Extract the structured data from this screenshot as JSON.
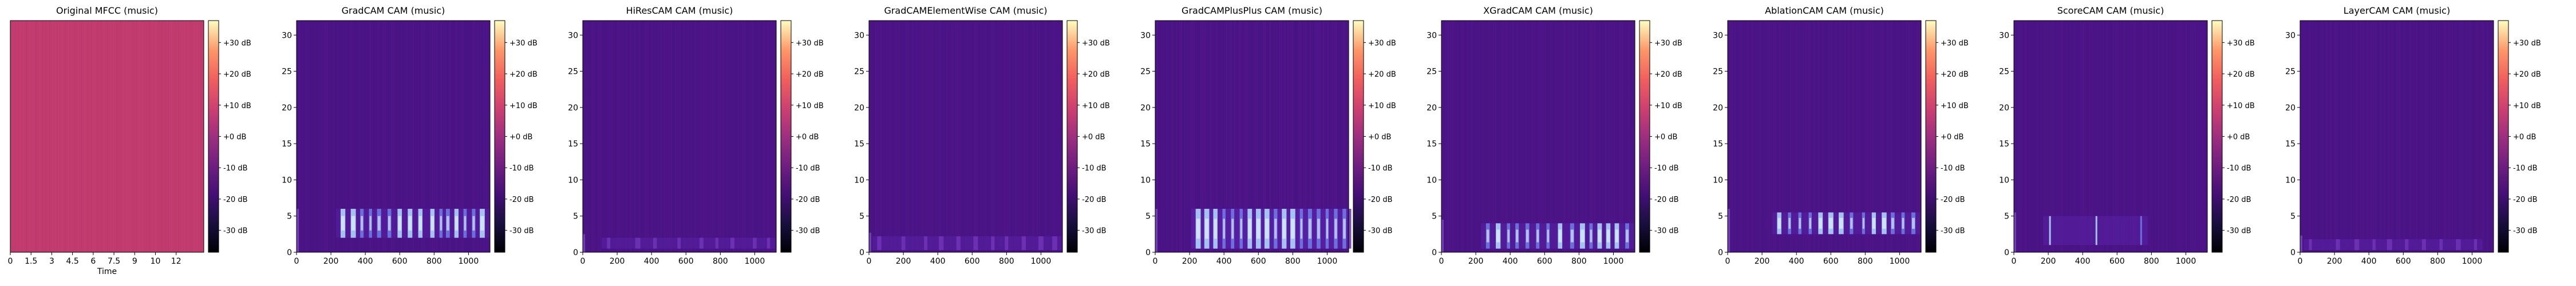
{
  "figure": {
    "colormap": "magma",
    "colorbar_ticks": [
      "+30 dB",
      "+20 dB",
      "+10 dB",
      "+0 dB",
      "-10 dB",
      "-20 dB",
      "-30 dB"
    ]
  },
  "chart_data": [
    {
      "type": "heatmap",
      "title": "Original MFCC (music)",
      "xlabel": "Time",
      "ylabel": "",
      "x_ticks": [
        "0",
        "1.5",
        "3",
        "4.5",
        "6",
        "7.5",
        "9",
        "10",
        "12"
      ],
      "y_ticks": [],
      "xlim": [
        0,
        14
      ],
      "pattern": "uniform",
      "base_color": "#c13b6e"
    },
    {
      "type": "heatmap",
      "title": "GradCAM CAM (music)",
      "xlabel": "",
      "ylabel": "",
      "x_ticks": [
        "0",
        "200",
        "400",
        "600",
        "800",
        "1000"
      ],
      "y_ticks": [
        "0",
        "5",
        "10",
        "15",
        "20",
        "25",
        "30"
      ],
      "xlim": [
        0,
        1125
      ],
      "ylim": [
        0,
        32
      ],
      "pattern": "band-low",
      "band": [
        2,
        6
      ],
      "hotspots_x": [
        270,
        330,
        380,
        430,
        480,
        540,
        600,
        660,
        720,
        790,
        840,
        880,
        930,
        980,
        1030,
        1080
      ]
    },
    {
      "type": "heatmap",
      "title": "HiResCAM CAM (music)",
      "xlabel": "",
      "ylabel": "",
      "x_ticks": [
        "0",
        "200",
        "400",
        "600",
        "800",
        "1000"
      ],
      "y_ticks": [
        "0",
        "5",
        "10",
        "15",
        "20",
        "25",
        "30"
      ],
      "xlim": [
        0,
        1125
      ],
      "ylim": [
        0,
        32
      ],
      "pattern": "faint-bottom",
      "band": [
        0.5,
        2
      ],
      "hotspots_x": [
        150,
        320,
        420,
        560,
        690,
        780,
        870,
        1000,
        1080
      ]
    },
    {
      "type": "heatmap",
      "title": "GradCAMElementWise CAM (music)",
      "xlabel": "",
      "ylabel": "",
      "x_ticks": [
        "0",
        "200",
        "400",
        "600",
        "800",
        "1000"
      ],
      "y_ticks": [
        "0",
        "5",
        "10",
        "15",
        "20",
        "25",
        "30"
      ],
      "xlim": [
        0,
        1125
      ],
      "ylim": [
        0,
        32
      ],
      "pattern": "faint-bottom",
      "band": [
        0.3,
        2.2
      ],
      "hotspots_x": [
        60,
        200,
        330,
        420,
        520,
        620,
        720,
        800,
        900,
        1000,
        1080
      ]
    },
    {
      "type": "heatmap",
      "title": "GradCAMPlusPlus CAM (music)",
      "xlabel": "",
      "ylabel": "",
      "x_ticks": [
        "0",
        "200",
        "400",
        "600",
        "800",
        "1000"
      ],
      "y_ticks": [
        "0",
        "5",
        "10",
        "15",
        "20",
        "25",
        "30"
      ],
      "xlim": [
        0,
        1125
      ],
      "ylim": [
        0,
        32
      ],
      "pattern": "band-wide",
      "band": [
        0.5,
        6
      ],
      "hotspots_x": [
        250,
        300,
        350,
        400,
        450,
        500,
        550,
        600,
        650,
        700,
        750,
        800,
        850,
        900,
        950,
        1000,
        1050,
        1100
      ]
    },
    {
      "type": "heatmap",
      "title": "XGradCAM CAM (music)",
      "xlabel": "",
      "ylabel": "",
      "x_ticks": [
        "0",
        "200",
        "400",
        "600",
        "800",
        "1000"
      ],
      "y_ticks": [
        "0",
        "5",
        "10",
        "15",
        "20",
        "25",
        "30"
      ],
      "xlim": [
        0,
        1125
      ],
      "ylim": [
        0,
        32
      ],
      "pattern": "band-low",
      "band": [
        0.5,
        4
      ],
      "hotspots_x": [
        270,
        330,
        390,
        440,
        500,
        560,
        620,
        690,
        760,
        820,
        870,
        920,
        970,
        1020,
        1080
      ]
    },
    {
      "type": "heatmap",
      "title": "AblationCAM CAM (music)",
      "xlabel": "",
      "ylabel": "",
      "x_ticks": [
        "0",
        "200",
        "400",
        "600",
        "800",
        "1000"
      ],
      "y_ticks": [
        "0",
        "5",
        "10",
        "15",
        "20",
        "25",
        "30"
      ],
      "xlim": [
        0,
        1125
      ],
      "ylim": [
        0,
        32
      ],
      "pattern": "band-low",
      "band": [
        2.5,
        5.5
      ],
      "hotspots_x": [
        300,
        360,
        420,
        480,
        540,
        600,
        660,
        720,
        790,
        850,
        910,
        960,
        1020,
        1080
      ]
    },
    {
      "type": "heatmap",
      "title": "ScoreCAM CAM (music)",
      "xlabel": "",
      "ylabel": "",
      "x_ticks": [
        "0",
        "200",
        "400",
        "600",
        "800",
        "1000"
      ],
      "y_ticks": [
        "0",
        "5",
        "10",
        "15",
        "20",
        "25",
        "30"
      ],
      "xlim": [
        0,
        1125
      ],
      "ylim": [
        0,
        32
      ],
      "pattern": "sparse",
      "band": [
        1,
        5
      ],
      "hotspots_x": [
        210,
        480,
        740
      ]
    },
    {
      "type": "heatmap",
      "title": "LayerCAM CAM (music)",
      "xlabel": "",
      "ylabel": "",
      "x_ticks": [
        "0",
        "200",
        "400",
        "600",
        "800",
        "1000"
      ],
      "y_ticks": [
        "0",
        "5",
        "10",
        "15",
        "20",
        "25",
        "30"
      ],
      "xlim": [
        0,
        1125
      ],
      "ylim": [
        0,
        32
      ],
      "pattern": "faint-bottom",
      "band": [
        0.3,
        1.8
      ],
      "hotspots_x": [
        60,
        220,
        330,
        430,
        520,
        620,
        720,
        820,
        920,
        1020
      ]
    }
  ]
}
